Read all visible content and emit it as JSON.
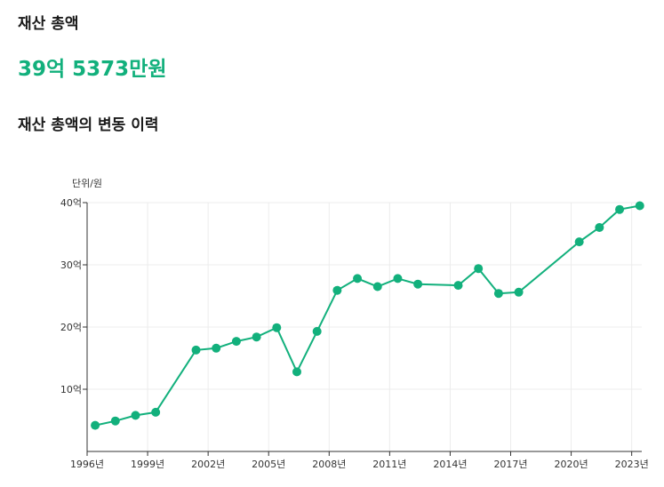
{
  "summary": {
    "total_label": "재산 총액",
    "total_value": "39억 5373만원"
  },
  "chart_title": "재산 총액의 변동 이력",
  "colors": {
    "accent": "#12b07c",
    "grid": "#ececec",
    "axis": "#333333"
  },
  "chart_data": {
    "type": "line",
    "unit_label": "단위/원",
    "y_ticks": [
      "10억",
      "20억",
      "30억",
      "40억"
    ],
    "y_tick_values": [
      10,
      20,
      30,
      40
    ],
    "ylim": [
      0,
      40
    ],
    "x_range": [
      1996,
      2023.5
    ],
    "x_ticks": [
      "1996년",
      "1999년",
      "2002년",
      "2005년",
      "2008년",
      "2011년",
      "2014년",
      "2017년",
      "2020년",
      "2023년"
    ],
    "x_tick_values": [
      1996,
      1999,
      2002,
      2005,
      2008,
      2011,
      2014,
      2017,
      2020,
      2023
    ],
    "grid": true,
    "series": [
      {
        "points": [
          {
            "x": 1996.4,
            "y": 4.2
          },
          {
            "x": 1997.4,
            "y": 4.9
          },
          {
            "x": 1998.4,
            "y": 5.8
          },
          {
            "x": 1999.4,
            "y": 6.3
          },
          {
            "x": 2001.4,
            "y": 16.3
          },
          {
            "x": 2002.4,
            "y": 16.6
          },
          {
            "x": 2003.4,
            "y": 17.7
          },
          {
            "x": 2004.4,
            "y": 18.4
          },
          {
            "x": 2005.4,
            "y": 19.9
          },
          {
            "x": 2006.4,
            "y": 12.8
          },
          {
            "x": 2007.4,
            "y": 19.3
          },
          {
            "x": 2008.4,
            "y": 25.9
          },
          {
            "x": 2009.4,
            "y": 27.8
          },
          {
            "x": 2010.4,
            "y": 26.5
          },
          {
            "x": 2011.4,
            "y": 27.8
          },
          {
            "x": 2012.4,
            "y": 26.9
          },
          {
            "x": 2014.4,
            "y": 26.7
          },
          {
            "x": 2015.4,
            "y": 29.4
          },
          {
            "x": 2016.4,
            "y": 25.4
          },
          {
            "x": 2017.4,
            "y": 25.6
          },
          {
            "x": 2020.4,
            "y": 33.7
          },
          {
            "x": 2021.4,
            "y": 36.0
          },
          {
            "x": 2022.4,
            "y": 38.9
          },
          {
            "x": 2023.4,
            "y": 39.5
          }
        ]
      }
    ]
  }
}
